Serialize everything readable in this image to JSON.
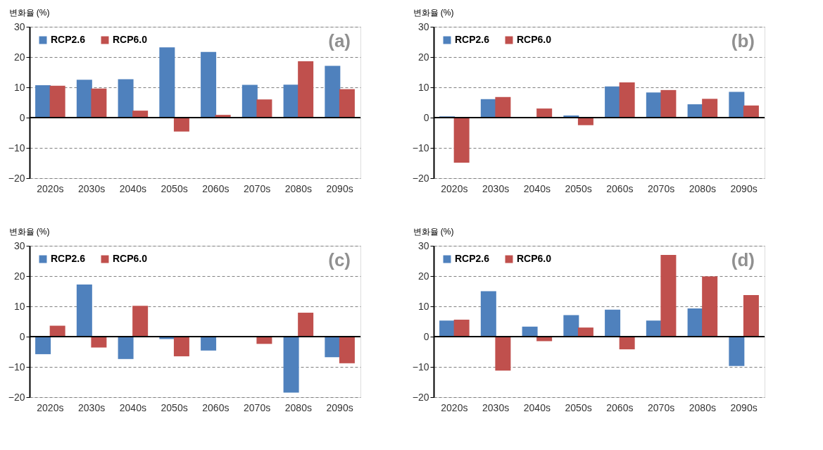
{
  "chart_data": [
    {
      "type": "bar",
      "title": "(a)",
      "ylabel": "변화율 (%)",
      "categories": [
        "2020s",
        "2030s",
        "2040s",
        "2050s",
        "2060s",
        "2070s",
        "2080s",
        "2090s"
      ],
      "series": [
        {
          "name": "RCP2.6",
          "color": "#4f81bd",
          "values": [
            10.7,
            12.5,
            12.7,
            23.2,
            21.7,
            10.8,
            10.9,
            17.1
          ]
        },
        {
          "name": "RCP6.0",
          "color": "#c0504d",
          "values": [
            10.5,
            9.6,
            2.3,
            -4.6,
            0.9,
            6.0,
            18.6,
            9.4
          ]
        }
      ],
      "ylim": [
        -20,
        30
      ],
      "yticks": [
        -20,
        -10,
        0,
        10,
        20,
        30
      ],
      "grid": "y",
      "legend": "top left",
      "ref_lines": [
        {
          "axis": "y",
          "value": 0,
          "color": "#000000"
        }
      ]
    },
    {
      "type": "bar",
      "title": "(b)",
      "ylabel": "변화율 (%)",
      "categories": [
        "2020s",
        "2030s",
        "2040s",
        "2050s",
        "2060s",
        "2070s",
        "2080s",
        "2090s"
      ],
      "series": [
        {
          "name": "RCP2.6",
          "color": "#4f81bd",
          "values": [
            0.4,
            6.1,
            null,
            0.7,
            10.3,
            8.3,
            4.4,
            8.5
          ]
        },
        {
          "name": "RCP6.0",
          "color": "#c0504d",
          "values": [
            -14.9,
            6.8,
            3.0,
            -2.5,
            11.6,
            9.1,
            6.2,
            4.0
          ]
        }
      ],
      "ylim": [
        -20,
        30
      ],
      "yticks": [
        -20,
        -10,
        0,
        10,
        20,
        30
      ],
      "grid": "y",
      "legend": "top left",
      "ref_lines": [
        {
          "axis": "y",
          "value": 0,
          "color": "#000000"
        }
      ]
    },
    {
      "type": "bar",
      "title": "(c)",
      "ylabel": "변화율 (%)",
      "categories": [
        "2020s",
        "2030s",
        "2040s",
        "2050s",
        "2060s",
        "2070s",
        "2080s",
        "2090s"
      ],
      "series": [
        {
          "name": "RCP2.6",
          "color": "#4f81bd",
          "values": [
            -5.8,
            17.2,
            -7.4,
            -0.8,
            -4.6,
            null,
            -18.5,
            -6.8
          ]
        },
        {
          "name": "RCP6.0",
          "color": "#c0504d",
          "values": [
            3.6,
            -3.6,
            10.2,
            -6.5,
            null,
            -2.4,
            7.9,
            -8.8
          ]
        }
      ],
      "ylim": [
        -20,
        30
      ],
      "yticks": [
        -20,
        -10,
        0,
        10,
        20,
        30
      ],
      "grid": "y",
      "legend": "top left",
      "ref_lines": [
        {
          "axis": "y",
          "value": 0,
          "color": "#000000"
        }
      ]
    },
    {
      "type": "bar",
      "title": "(d)",
      "ylabel": "변화율 (%)",
      "categories": [
        "2020s",
        "2030s",
        "2040s",
        "2050s",
        "2060s",
        "2070s",
        "2080s",
        "2090s"
      ],
      "series": [
        {
          "name": "RCP2.6",
          "color": "#4f81bd",
          "values": [
            5.3,
            15.0,
            3.3,
            7.1,
            8.9,
            5.3,
            9.3,
            -9.7
          ]
        },
        {
          "name": "RCP6.0",
          "color": "#c0504d",
          "values": [
            5.6,
            -11.2,
            -1.5,
            3.0,
            -4.2,
            27.0,
            19.9,
            13.7
          ]
        }
      ],
      "ylim": [
        -20,
        30
      ],
      "yticks": [
        -20,
        -10,
        0,
        10,
        20,
        30
      ],
      "grid": "y",
      "legend": "top left",
      "ref_lines": [
        {
          "axis": "y",
          "value": 0,
          "color": "#000000"
        }
      ]
    }
  ]
}
